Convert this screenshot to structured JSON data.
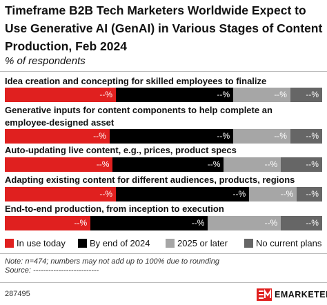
{
  "chart_data": {
    "type": "stacked-bar",
    "title": "Timeframe B2B Tech Marketers Worldwide Expect to Use Generative AI (GenAI) in Various Stages of Content Production, Feb 2024",
    "subtitle": "% of respondents",
    "categories": [
      "Idea creation and concepting for skilled employees to finalize",
      "Generative inputs for content components to help complete an employee-designed asset",
      "Auto-updating live content, e.g., prices, product specs",
      "Adapting existing content for different audiences, products, regions",
      "End-to-end production, from inception to execution"
    ],
    "xlim": [
      0,
      100
    ],
    "series": [
      {
        "name": "In use today",
        "color": "#e0201f",
        "values": [
          35,
          33,
          34,
          35,
          27
        ],
        "value_labels": [
          "--%",
          "--%",
          "--%",
          "--%",
          "--%"
        ]
      },
      {
        "name": "By end of 2024",
        "color": "#000000",
        "values": [
          37,
          39,
          35,
          42,
          37
        ],
        "value_labels": [
          "--%",
          "--%",
          "--%",
          "--%",
          "--%"
        ]
      },
      {
        "name": "2025 or later",
        "color": "#a6a6a6",
        "values": [
          18,
          18,
          18,
          15,
          23
        ],
        "value_labels": [
          "--%",
          "--%",
          "--%",
          "--%",
          "--%"
        ]
      },
      {
        "name": "No current plans",
        "color": "#666666",
        "values": [
          10,
          10,
          13,
          8,
          13
        ],
        "value_labels": [
          "--%",
          "--%",
          "--%",
          "--%",
          "--%"
        ]
      }
    ],
    "note": "Note: n=474; numbers may not add up to 100% due to rounding",
    "source": "Source: --------------------------",
    "footer_id": "287495",
    "brand": "EMARKETER"
  }
}
